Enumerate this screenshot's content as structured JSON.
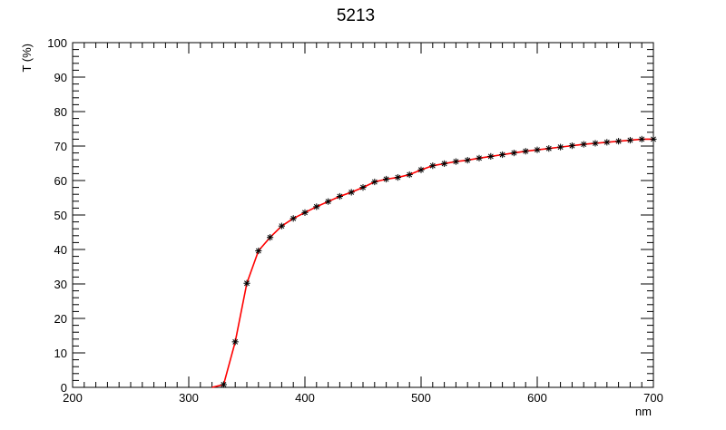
{
  "chart_data": {
    "type": "line",
    "title": "5213",
    "xlabel": "nm",
    "ylabel": "T (%)",
    "xlim": [
      200,
      700
    ],
    "ylim": [
      0,
      100
    ],
    "x_ticks": [
      200,
      300,
      400,
      500,
      600,
      700
    ],
    "y_ticks": [
      0,
      10,
      20,
      30,
      40,
      50,
      60,
      70,
      80,
      90,
      100
    ],
    "grid": false,
    "legend": "none",
    "series": [
      {
        "line_color": "#ff0000",
        "marker": "asterisk",
        "marker_color": "#000000",
        "x": [
          320,
          330,
          340,
          350,
          360,
          370,
          380,
          390,
          400,
          410,
          420,
          430,
          440,
          450,
          460,
          470,
          480,
          490,
          500,
          510,
          520,
          530,
          540,
          550,
          560,
          570,
          580,
          590,
          600,
          610,
          620,
          630,
          640,
          650,
          660,
          670,
          680,
          690,
          700
        ],
        "y": [
          0,
          0.8,
          13.2,
          30.2,
          39.6,
          43.5,
          46.8,
          49.0,
          50.7,
          52.4,
          53.9,
          55.4,
          56.6,
          58.0,
          59.6,
          60.4,
          60.9,
          61.7,
          63.1,
          64.3,
          64.9,
          65.5,
          65.9,
          66.5,
          67.0,
          67.5,
          68.0,
          68.5,
          68.9,
          69.3,
          69.7,
          70.1,
          70.5,
          70.8,
          71.1,
          71.4,
          71.7,
          72.0,
          72.0
        ]
      }
    ]
  }
}
